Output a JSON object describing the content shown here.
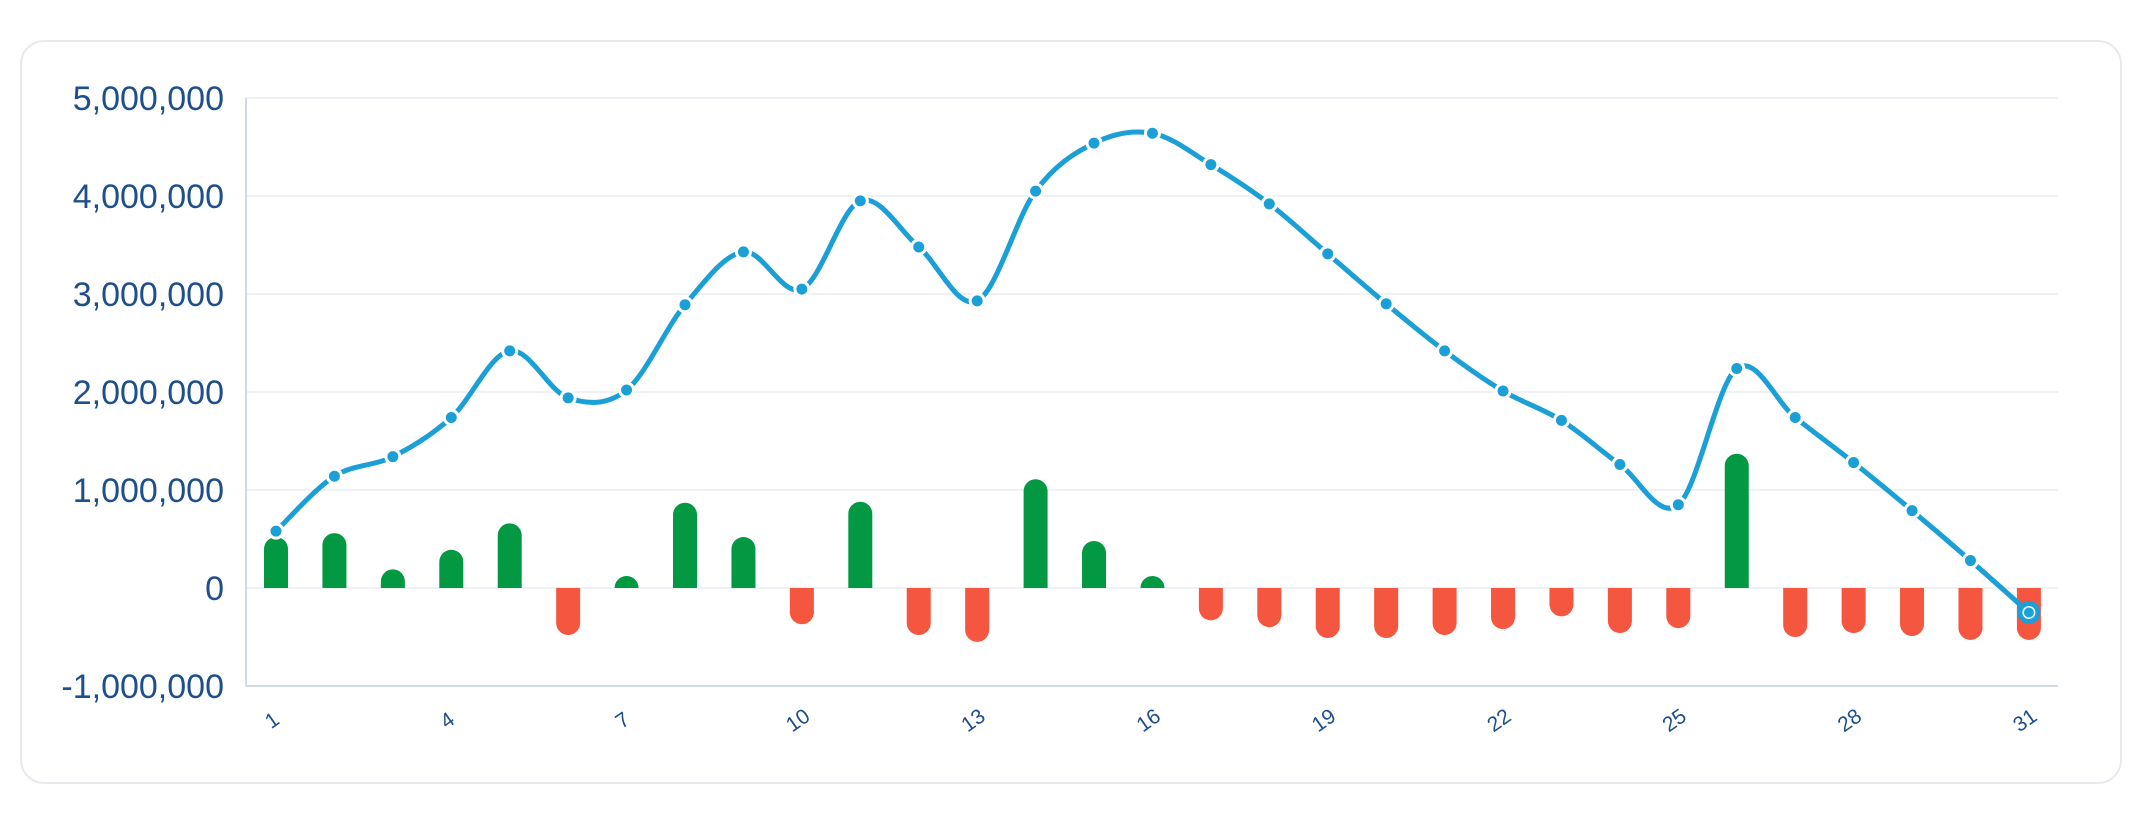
{
  "chart_data": {
    "type": "bar",
    "title": "",
    "xlabel": "",
    "ylabel": "",
    "ylim": [
      -1000000,
      5000000
    ],
    "y_ticks": [
      "5,000,000",
      "4,000,000",
      "3,000,000",
      "2,000,000",
      "1,000,000",
      "0",
      "-1,000,000"
    ],
    "y_tick_values": [
      5000000,
      4000000,
      3000000,
      2000000,
      1000000,
      0,
      -1000000
    ],
    "x": [
      1,
      2,
      3,
      4,
      5,
      6,
      7,
      8,
      9,
      10,
      11,
      12,
      13,
      14,
      15,
      16,
      17,
      18,
      19,
      20,
      21,
      22,
      23,
      24,
      25,
      26,
      27,
      28,
      29,
      30,
      31
    ],
    "x_tick_labels": [
      "1",
      "4",
      "7",
      "10",
      "13",
      "16",
      "19",
      "22",
      "25",
      "28",
      "31"
    ],
    "grid": true,
    "colors": {
      "positive": "#039943",
      "negative": "#f5563f",
      "line": "#1a9fd6",
      "axis": "#1d4f8c",
      "grid": "#eef1f5"
    },
    "series": [
      {
        "type": "bar",
        "values": [
          520000,
          560000,
          190000,
          390000,
          660000,
          -480000,
          80000,
          870000,
          520000,
          -370000,
          880000,
          -480000,
          -550000,
          1110000,
          480000,
          100000,
          -330000,
          -400000,
          -510000,
          -510000,
          -480000,
          -420000,
          -290000,
          -460000,
          -410000,
          1370000,
          -500000,
          -460000,
          -490000,
          -530000,
          -530000
        ]
      },
      {
        "type": "line",
        "values": [
          580000,
          1140000,
          1340000,
          1740000,
          2420000,
          1940000,
          2020000,
          2890000,
          3430000,
          3050000,
          3950000,
          3480000,
          2930000,
          4050000,
          4540000,
          4640000,
          4320000,
          3920000,
          3410000,
          2900000,
          2420000,
          2010000,
          1710000,
          1260000,
          850000,
          2240000,
          1740000,
          1280000,
          790000,
          280000,
          -250000
        ]
      }
    ]
  }
}
